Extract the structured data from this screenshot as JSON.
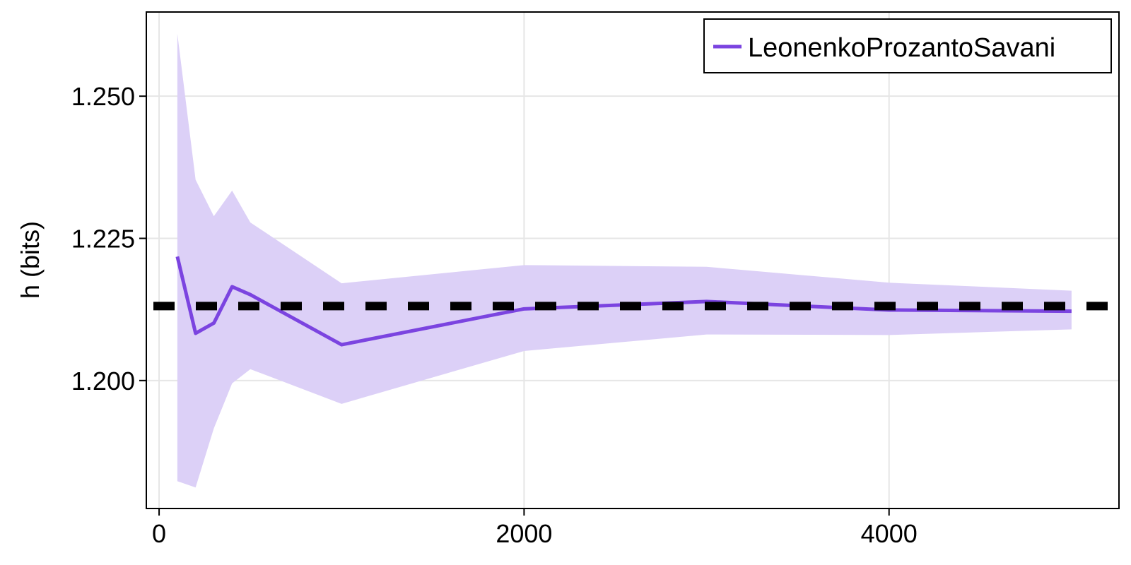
{
  "chart_data": {
    "type": "line",
    "title": "",
    "xlabel": "",
    "ylabel": "h (bits)",
    "xlim": [
      -70,
      5260
    ],
    "ylim": [
      1.1775,
      1.2648
    ],
    "xticks": [
      0,
      2000,
      4000
    ],
    "xtick_labels": [
      "0",
      "2000",
      "4000"
    ],
    "yticks": [
      1.2,
      1.225,
      1.25
    ],
    "ytick_labels": [
      "1.200",
      "1.225",
      "1.250"
    ],
    "grid": true,
    "legend": {
      "position": "top-right",
      "entries": [
        "LeonenkoProzantoSavani"
      ]
    },
    "series": [
      {
        "name": "LeonenkoProzantoSavani",
        "color": "#7b44e0",
        "band_color": "#dcd0f7",
        "x": [
          100,
          200,
          300,
          400,
          500,
          1000,
          2000,
          3000,
          4000,
          5000
        ],
        "mean": [
          1.2218,
          1.2083,
          1.2101,
          1.2165,
          1.2151,
          1.2063,
          1.2126,
          1.2139,
          1.2124,
          1.2122
        ],
        "upper": [
          1.261,
          1.2353,
          1.2289,
          1.2334,
          1.2278,
          1.2171,
          1.2203,
          1.22,
          1.2172,
          1.2158
        ],
        "lower": [
          1.1823,
          1.1812,
          1.1916,
          1.1995,
          1.202,
          1.1959,
          1.2052,
          1.2081,
          1.208,
          1.209
        ]
      }
    ],
    "reference_line": {
      "y": 1.2131,
      "style": "dashed",
      "color": "#000000"
    }
  }
}
